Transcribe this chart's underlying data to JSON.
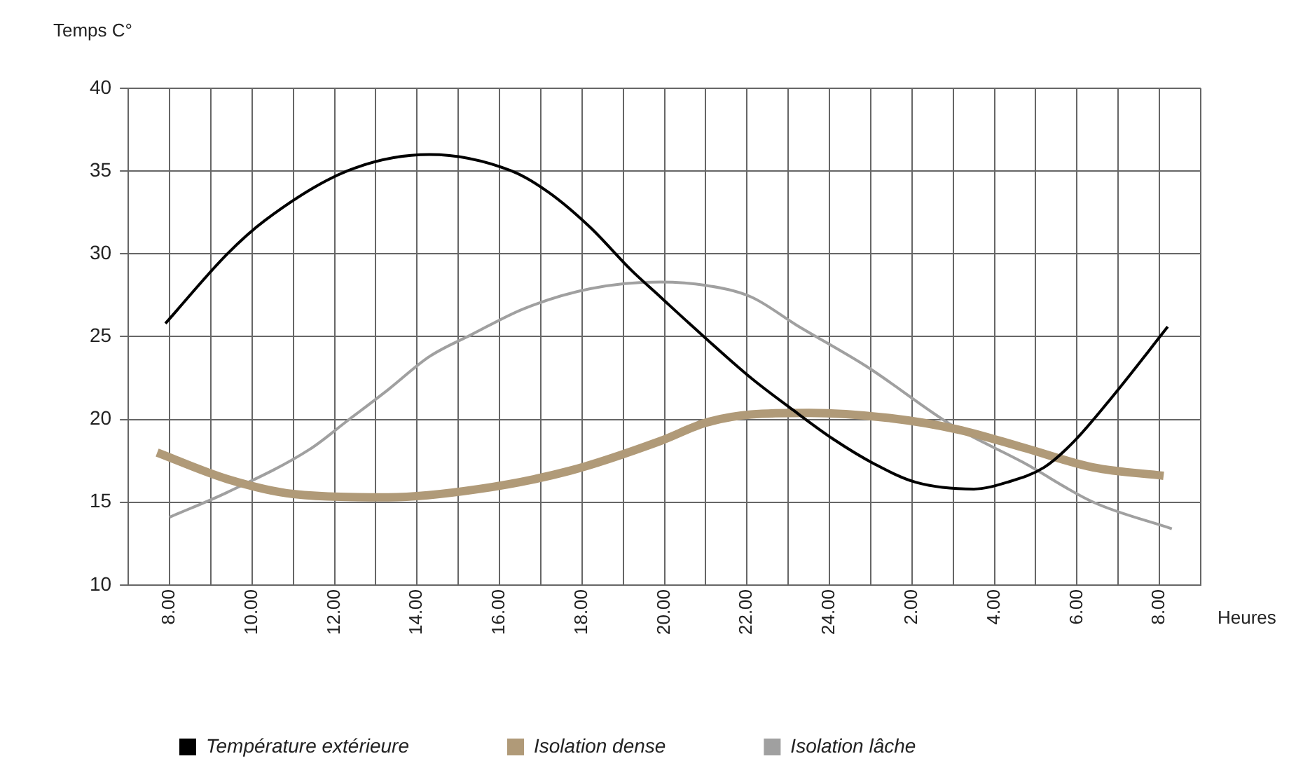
{
  "chart_data": {
    "type": "line",
    "xlabel": "Heures",
    "ylabel": "Temps C°",
    "xlim": [
      "--01-01T07:00",
      "--01-02T09:00"
    ],
    "xticks": [
      {
        "value": "--01-01T07:00",
        "label": null
      },
      {
        "value": "--01-01T08:00",
        "label": "8.00"
      },
      {
        "value": "--01-01T09:00",
        "label": null
      },
      {
        "value": "--01-01T10:00",
        "label": "10.00"
      },
      {
        "value": "--01-01T11:00",
        "label": null
      },
      {
        "value": "--01-01T12:00",
        "label": "12.00"
      },
      {
        "value": "--01-01T13:00",
        "label": null
      },
      {
        "value": "--01-01T14:00",
        "label": "14.00"
      },
      {
        "value": "--01-01T15:00",
        "label": null
      },
      {
        "value": "--01-01T16:00",
        "label": "16.00"
      },
      {
        "value": "--01-01T17:00",
        "label": null
      },
      {
        "value": "--01-01T18:00",
        "label": "18.00"
      },
      {
        "value": "--01-01T19:00",
        "label": null
      },
      {
        "value": "--01-01T20:00",
        "label": "20.00"
      },
      {
        "value": "--01-01T21:00",
        "label": null
      },
      {
        "value": "--01-01T22:00",
        "label": "22.00"
      },
      {
        "value": "--01-01T23:00",
        "label": null
      },
      {
        "value": "--01-02T00:00",
        "label": "24.00"
      },
      {
        "value": "--01-02T01:00",
        "label": null
      },
      {
        "value": "--01-02T02:00",
        "label": "2.00"
      },
      {
        "value": "--01-02T03:00",
        "label": null
      },
      {
        "value": "--01-02T04:00",
        "label": "4.00"
      },
      {
        "value": "--01-02T05:00",
        "label": null
      },
      {
        "value": "--01-02T06:00",
        "label": "6.00"
      },
      {
        "value": "--01-02T07:00",
        "label": null
      },
      {
        "value": "--01-02T08:00",
        "label": "8.00"
      },
      {
        "value": "--01-02T09:00",
        "label": null
      }
    ],
    "ylim": [
      10,
      40
    ],
    "yticks": [
      10,
      15,
      20,
      25,
      30,
      35,
      40
    ],
    "grid": true,
    "legend": "bottom left",
    "marker": "none",
    "line_style": "solid",
    "series": [
      {
        "name": "Température extérieure",
        "color": "#000000",
        "x": [
          "--01-01T07:54",
          "--01-01T09:24",
          "--01-01T10:18",
          "--01-01T12:18",
          "--01-01T14:18",
          "--01-01T16:18",
          "--01-01T17:12",
          "--01-01T18:12",
          "--01-01T19:12",
          "--01-01T19:54",
          "--01-01T20:36",
          "--01-01T22:06",
          "--01-01T23:06",
          "--01-02T00:06",
          "--01-02T01:06",
          "--01-02T02:06",
          "--01-02T03:30",
          "--01-02T04:18",
          "--01-02T05:12",
          "--01-02T05:54",
          "--01-02T06:54",
          "--01-02T08:12"
        ],
        "values": [
          25.8,
          30,
          32,
          35,
          36,
          35,
          33.7,
          31.6,
          29,
          27.4,
          25.8,
          22.5,
          20.6,
          18.8,
          17.3,
          16.2,
          15.8,
          16.2,
          17.1,
          18.6,
          21.5,
          25.6
        ]
      },
      {
        "name": "Isolation dense",
        "color": "#b09a78",
        "x": [
          "--01-01T07:42",
          "--01-01T09:24",
          "--01-01T11:00",
          "--01-01T13:18",
          "--01-01T15:30",
          "--01-01T17:42",
          "--01-01T19:54",
          "--01-01T21:00",
          "--01-01T22:06",
          "--01-01T23:30",
          "--01-02T01:24",
          "--01-02T03:06",
          "--01-02T04:42",
          "--01-02T06:24",
          "--01-02T08:06"
        ],
        "values": [
          18,
          16.4,
          15.5,
          15.3,
          15.8,
          16.9,
          18.7,
          19.8,
          20.3,
          20.4,
          20.1,
          19.4,
          18.3,
          17.1,
          16.6
        ]
      },
      {
        "name": "Isolation lâche",
        "color": "#a0a0a0",
        "x": [
          "--01-01T08:00",
          "--01-01T09:24",
          "--01-01T11:24",
          "--01-01T12:18",
          "--01-01T13:18",
          "--01-01T14:18",
          "--01-01T15:18",
          "--01-01T16:36",
          "--01-01T18:12",
          "--01-01T19:54",
          "--01-01T21:00",
          "--01-01T22:06",
          "--01-01T23:12",
          "--01-02T00:54",
          "--01-02T03:00",
          "--01-02T04:42",
          "--01-02T06:24",
          "--01-02T08:18"
        ],
        "values": [
          14.1,
          15.6,
          18.2,
          19.9,
          21.8,
          23.8,
          25.1,
          26.7,
          27.9,
          28.3,
          28.1,
          27.4,
          25.7,
          23.2,
          19.6,
          17.4,
          15,
          13.4
        ]
      }
    ]
  }
}
